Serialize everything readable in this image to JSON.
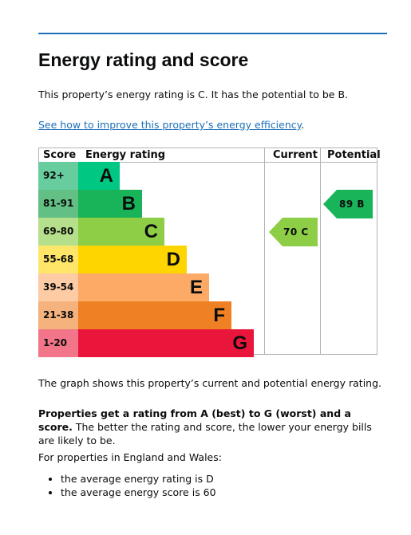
{
  "heading": "Energy rating and score",
  "intro": "This property’s energy rating is C. It has the potential to be B.",
  "link_text": "See how to improve this property’s energy efficiency",
  "link_suffix": ".",
  "chart": {
    "headers": {
      "score": "Score",
      "rating": "Energy rating",
      "current": "Current",
      "potential": "Potential"
    },
    "bands": [
      {
        "range": "92+",
        "letter": "A",
        "color": "#00c781",
        "score_bg": "#67cd9f"
      },
      {
        "range": "81-91",
        "letter": "B",
        "color": "#19b459",
        "score_bg": "#63c085"
      },
      {
        "range": "69-80",
        "letter": "C",
        "color": "#8dce46",
        "score_bg": "#b5df8a"
      },
      {
        "range": "55-68",
        "letter": "D",
        "color": "#ffd500",
        "score_bg": "#ffe668"
      },
      {
        "range": "39-54",
        "letter": "E",
        "color": "#fcaa65",
        "score_bg": "#fdcba4"
      },
      {
        "range": "21-38",
        "letter": "F",
        "color": "#ef8023",
        "score_bg": "#f5b27c"
      },
      {
        "range": "1-20",
        "letter": "G",
        "color": "#e9153b",
        "score_bg": "#f27589"
      }
    ],
    "current": {
      "label": "70 C",
      "score": 70,
      "rating": "C",
      "color": "#8dce46"
    },
    "potential": {
      "label": "89 B",
      "score": 89,
      "rating": "B",
      "color": "#19b459"
    }
  },
  "graph_text": "The graph shows this property’s current and potential energy rating.",
  "bold_text": "Properties get a rating from A (best) to G (worst) and a score.",
  "after_bold": " The better the rating and score, the lower your energy bills are likely to be.",
  "countries_text": "For properties in England and Wales:",
  "bullets": [
    "the average energy rating is D",
    "the average energy score is 60"
  ]
}
